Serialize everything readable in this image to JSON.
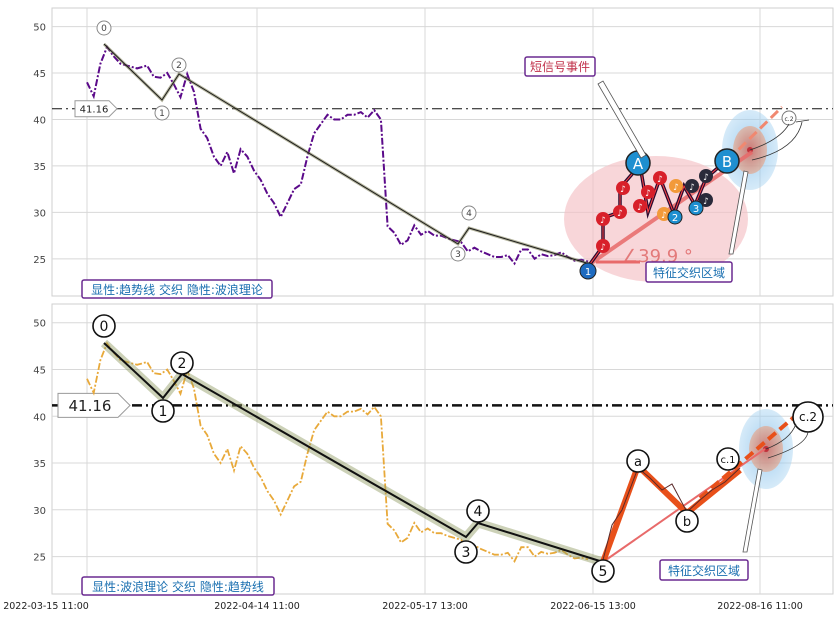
{
  "colors": {
    "top_line": "#5b0a8a",
    "bottom_line": "#e8a93a",
    "trend": "#1a1a1a",
    "wave_red": "#e8501a",
    "pink": "#f2a3a8",
    "label_border": "#6a2a90",
    "label_text": "#1a6fb0",
    "event_text": "#c0304a",
    "angle_text": "#e06a6a"
  },
  "chart_data": [
    {
      "type": "line",
      "panel": "top",
      "y_ticks": [
        25,
        30,
        35,
        40,
        45,
        50
      ],
      "ylim": [
        21,
        52
      ],
      "grid": true,
      "ref_line": {
        "value": 41.16,
        "label": "41.16"
      },
      "caption": "显性:趋势线 交织 隐性:波浪理论",
      "callouts": {
        "signal_event": "短信号事件",
        "feature_zone": "特征交织区域"
      },
      "angle_label": "∠39.9 °",
      "trend_labels": [
        "0",
        "1",
        "2",
        "3",
        "4"
      ],
      "wave_labels": [
        "1",
        "A",
        "2",
        "3",
        "B"
      ],
      "end_label": "c.2",
      "series": [
        {
          "x": [
            0,
            2,
            4,
            6,
            8,
            10,
            12,
            15,
            18,
            20,
            22,
            24,
            26,
            28,
            30,
            32,
            34,
            36,
            38,
            40,
            42,
            44,
            46,
            48,
            50,
            52,
            54,
            56,
            58,
            60,
            62,
            64,
            66,
            68,
            70,
            72,
            74,
            76,
            78,
            80,
            82,
            84,
            86,
            88,
            90,
            92,
            94,
            96,
            98,
            100,
            102,
            104,
            106,
            108,
            110,
            112,
            114,
            116,
            118,
            120,
            122,
            124,
            126,
            128,
            130,
            132,
            134,
            136,
            138,
            140,
            142,
            144,
            146,
            148,
            150
          ],
          "y": [
            44.0,
            42.5,
            46.0,
            47.8,
            46.8,
            46.0,
            45.8,
            45.5,
            45.8,
            44.6,
            44.5,
            45.0,
            43.8,
            42.4,
            44.9,
            43.0,
            39.0,
            38.0,
            36.0,
            35.0,
            36.5,
            34.2,
            36.8,
            36.0,
            34.5,
            33.5,
            32.0,
            31.0,
            29.5,
            31.0,
            32.5,
            33.0,
            36.0,
            38.5,
            39.5,
            40.5,
            40.0,
            40.0,
            40.5,
            40.5,
            40.8,
            40.2,
            41.0,
            40.0,
            28.5,
            27.8,
            26.5,
            27.0,
            28.6,
            27.6,
            28.0,
            27.5,
            27.5,
            27.2,
            27.0,
            26.8,
            25.8,
            26.2,
            25.8,
            25.5,
            25.2,
            25.2,
            25.4,
            24.5,
            26.0,
            26.0,
            25.0,
            25.5,
            25.3,
            25.4,
            25.7,
            25.2,
            24.8,
            24.9,
            24.7
          ]
        }
      ]
    },
    {
      "type": "line",
      "panel": "bottom",
      "y_ticks": [
        25,
        30,
        35,
        40,
        45,
        50
      ],
      "ylim": [
        21,
        52
      ],
      "grid": true,
      "ref_line": {
        "value": 41.16,
        "label": "41.16"
      },
      "caption": "显性:波浪理论 交织 隐性:趋势线",
      "callouts": {
        "feature_zone": "特征交织区域"
      },
      "trend_labels": [
        "0",
        "1",
        "2",
        "3",
        "4",
        "5"
      ],
      "wave_labels": [
        "a",
        "b",
        "c.1",
        "c.2"
      ],
      "x_tick_labels": [
        "2022-03-15 11:00",
        "2022-04-14 11:00",
        "2022-05-17 13:00",
        "2022-06-15 13:00",
        "2022-08-16 11:00"
      ],
      "series": [
        {
          "x": [
            0,
            2,
            4,
            6,
            8,
            10,
            12,
            15,
            18,
            20,
            22,
            24,
            26,
            28,
            30,
            32,
            34,
            36,
            38,
            40,
            42,
            44,
            46,
            48,
            50,
            52,
            54,
            56,
            58,
            60,
            62,
            64,
            66,
            68,
            70,
            72,
            74,
            76,
            78,
            80,
            82,
            84,
            86,
            88,
            90,
            92,
            94,
            96,
            98,
            100,
            102,
            104,
            106,
            108,
            110,
            112,
            114,
            116,
            118,
            120,
            122,
            124,
            126,
            128,
            130,
            132,
            134,
            136,
            138,
            140,
            142,
            144,
            146,
            148,
            150
          ],
          "y": [
            44.0,
            42.5,
            46.0,
            47.8,
            46.8,
            46.0,
            45.8,
            45.5,
            45.8,
            44.6,
            44.5,
            45.0,
            43.8,
            42.4,
            44.9,
            43.0,
            39.0,
            38.0,
            36.0,
            35.0,
            36.5,
            34.2,
            36.8,
            36.0,
            34.5,
            33.5,
            32.0,
            31.0,
            29.5,
            31.0,
            32.5,
            33.0,
            36.0,
            38.5,
            39.5,
            40.5,
            40.0,
            40.0,
            40.5,
            40.5,
            40.8,
            40.2,
            41.0,
            40.0,
            28.5,
            27.8,
            26.5,
            27.0,
            28.6,
            27.6,
            28.0,
            27.5,
            27.5,
            27.2,
            27.0,
            26.8,
            25.8,
            26.2,
            25.8,
            25.5,
            25.2,
            25.2,
            25.4,
            24.5,
            26.0,
            26.0,
            25.0,
            25.5,
            25.3,
            25.4,
            25.7,
            25.2,
            24.8,
            24.9,
            24.7
          ]
        }
      ]
    }
  ]
}
